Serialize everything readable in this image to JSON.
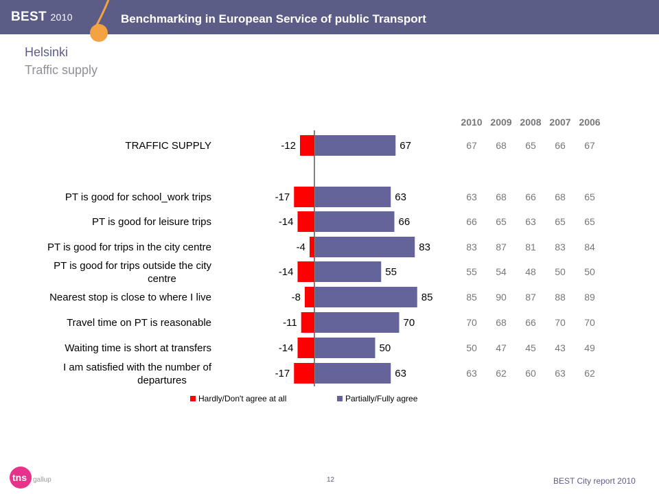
{
  "header": {
    "best": "BEST",
    "year": "2010",
    "title": "Benchmarking in European Service of public Transport"
  },
  "page": {
    "city": "Helsinki",
    "subtitle": "Traffic supply"
  },
  "footer": {
    "page_number": "12",
    "report": "BEST City report 2010",
    "logo_text": "tns gallup"
  },
  "colors": {
    "disagree": "#ff0000",
    "agree": "#64649a",
    "banner": "#5b5d86",
    "accent": "#f4a343"
  },
  "chart_data": {
    "type": "bar",
    "orientation": "horizontal-diverging",
    "categories": [
      "TRAFFIC SUPPLY",
      "PT is good for school_work trips",
      "PT is good for leisure trips",
      "PT is good for trips in the city centre",
      "PT is good for trips outside the city centre",
      "Nearest stop is close to where I live",
      "Travel time on PT is reasonable",
      "Waiting time is short at transfers",
      "I am satisfied with the number of departures"
    ],
    "category_lines": [
      [
        "TRAFFIC SUPPLY"
      ],
      [
        "PT is good for school_work trips"
      ],
      [
        "PT is good for leisure trips"
      ],
      [
        "PT is good for trips in the city centre"
      ],
      [
        "PT is good for trips outside the city",
        "centre"
      ],
      [
        "Nearest stop is close to where I live"
      ],
      [
        "Travel time on PT is reasonable"
      ],
      [
        "Waiting time is short at transfers"
      ],
      [
        "I am satisfied with the number of",
        "departures"
      ]
    ],
    "series": [
      {
        "name": "Hardly/Don't agree at all",
        "values": [
          -12,
          -17,
          -14,
          -4,
          -14,
          -8,
          -11,
          -14,
          -17
        ]
      },
      {
        "name": "Partially/Fully agree",
        "values": [
          67,
          63,
          66,
          83,
          55,
          85,
          70,
          50,
          63
        ]
      }
    ],
    "history_years": [
      "2010",
      "2009",
      "2008",
      "2007",
      "2006"
    ],
    "history": [
      [
        67,
        68,
        65,
        66,
        67
      ],
      [
        63,
        68,
        66,
        68,
        65
      ],
      [
        66,
        65,
        63,
        65,
        65
      ],
      [
        83,
        87,
        81,
        83,
        84
      ],
      [
        55,
        54,
        48,
        50,
        50
      ],
      [
        85,
        90,
        87,
        88,
        89
      ],
      [
        70,
        68,
        66,
        70,
        70
      ],
      [
        50,
        47,
        45,
        43,
        49
      ],
      [
        63,
        62,
        60,
        63,
        62
      ]
    ],
    "legend_position": "bottom",
    "grid": false
  }
}
